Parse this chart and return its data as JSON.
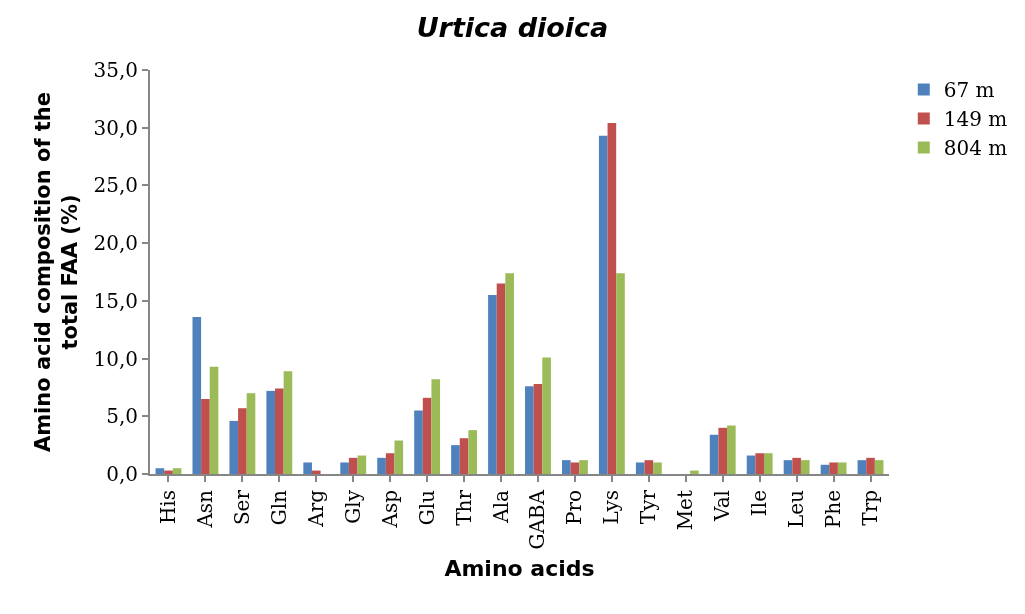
{
  "chart_data": {
    "type": "bar",
    "title": "Urtica dioica",
    "xlabel": "Amino acids",
    "ylabel": "Amino acid composition of the total FAA (%)",
    "categories": [
      "His",
      "Asn",
      "Ser",
      "Gln",
      "Arg",
      "Gly",
      "Asp",
      "Glu",
      "Thr",
      "Ala",
      "GABA",
      "Pro",
      "Lys",
      "Tyr",
      "Met",
      "Val",
      "Ile",
      "Leu",
      "Phe",
      "Trp"
    ],
    "series": [
      {
        "name": "67 m",
        "color": "#4f81bd",
        "values": [
          0.5,
          13.6,
          4.6,
          7.2,
          1.0,
          1.0,
          1.4,
          5.5,
          2.5,
          15.5,
          7.6,
          1.2,
          29.3,
          1.0,
          0,
          3.4,
          1.6,
          1.2,
          0.8,
          1.2
        ]
      },
      {
        "name": "149 m",
        "color": "#c0504d",
        "values": [
          0.3,
          6.5,
          5.7,
          7.4,
          0.3,
          1.4,
          1.8,
          6.6,
          3.1,
          16.5,
          7.8,
          1.0,
          30.4,
          1.2,
          0,
          4.0,
          1.8,
          1.4,
          1.0,
          1.4
        ]
      },
      {
        "name": "804 m",
        "color": "#9bbb59",
        "values": [
          0.5,
          9.3,
          7.0,
          8.9,
          0,
          1.6,
          2.9,
          8.2,
          3.8,
          17.4,
          10.1,
          1.2,
          17.4,
          1.0,
          0.3,
          4.2,
          1.8,
          1.2,
          1.0,
          1.2
        ]
      }
    ],
    "ylim": [
      0,
      35
    ],
    "yticks": [
      {
        "value": 0,
        "label": "0,0"
      },
      {
        "value": 5,
        "label": "5,0"
      },
      {
        "value": 10,
        "label": "10,0"
      },
      {
        "value": 15,
        "label": "15,0"
      },
      {
        "value": 20,
        "label": "20,0"
      },
      {
        "value": 25,
        "label": "25,0"
      },
      {
        "value": 30,
        "label": "30,0"
      },
      {
        "value": 35,
        "label": "35,0"
      }
    ],
    "grid": false,
    "legend": "right"
  }
}
